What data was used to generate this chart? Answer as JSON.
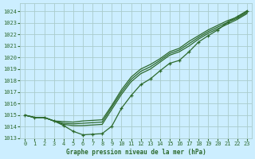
{
  "title": "Graphe pression niveau de la mer (hPa)",
  "bg_color": "#cceeff",
  "grid_color": "#aacccc",
  "line_color": "#2d6a2d",
  "xlim": [
    -0.5,
    23.5
  ],
  "ylim": [
    1013,
    1024.7
  ],
  "yticks": [
    1013,
    1014,
    1015,
    1016,
    1017,
    1018,
    1019,
    1020,
    1021,
    1022,
    1023,
    1024
  ],
  "xticks": [
    0,
    1,
    2,
    3,
    4,
    5,
    6,
    7,
    8,
    9,
    10,
    11,
    12,
    13,
    14,
    15,
    16,
    17,
    18,
    19,
    20,
    21,
    22,
    23
  ],
  "marker_line": [
    1015.0,
    1014.8,
    1014.8,
    1014.5,
    1014.1,
    1013.6,
    1013.3,
    1013.35,
    1013.4,
    1014.05,
    1015.6,
    1016.7,
    1017.65,
    1018.15,
    1018.85,
    1019.5,
    1019.75,
    1020.5,
    1021.35,
    1021.9,
    1022.4,
    1023.05,
    1023.55,
    1024.05
  ],
  "line2": [
    1015.0,
    1014.8,
    1014.8,
    1014.5,
    1014.2,
    1014.1,
    1014.1,
    1014.15,
    1014.2,
    1015.5,
    1016.8,
    1017.9,
    1018.6,
    1019.0,
    1019.6,
    1020.2,
    1020.5,
    1021.0,
    1021.6,
    1022.1,
    1022.5,
    1022.9,
    1023.3,
    1023.8
  ],
  "line3": [
    1015.0,
    1014.8,
    1014.8,
    1014.5,
    1014.3,
    1014.25,
    1014.3,
    1014.35,
    1014.4,
    1015.7,
    1017.0,
    1018.1,
    1018.8,
    1019.2,
    1019.75,
    1020.35,
    1020.65,
    1021.2,
    1021.75,
    1022.25,
    1022.65,
    1023.05,
    1023.4,
    1023.9
  ],
  "line4": [
    1015.0,
    1014.8,
    1014.8,
    1014.5,
    1014.45,
    1014.4,
    1014.5,
    1014.55,
    1014.6,
    1015.85,
    1017.2,
    1018.3,
    1019.0,
    1019.4,
    1019.9,
    1020.5,
    1020.8,
    1021.4,
    1021.9,
    1022.4,
    1022.8,
    1023.2,
    1023.5,
    1024.0
  ]
}
